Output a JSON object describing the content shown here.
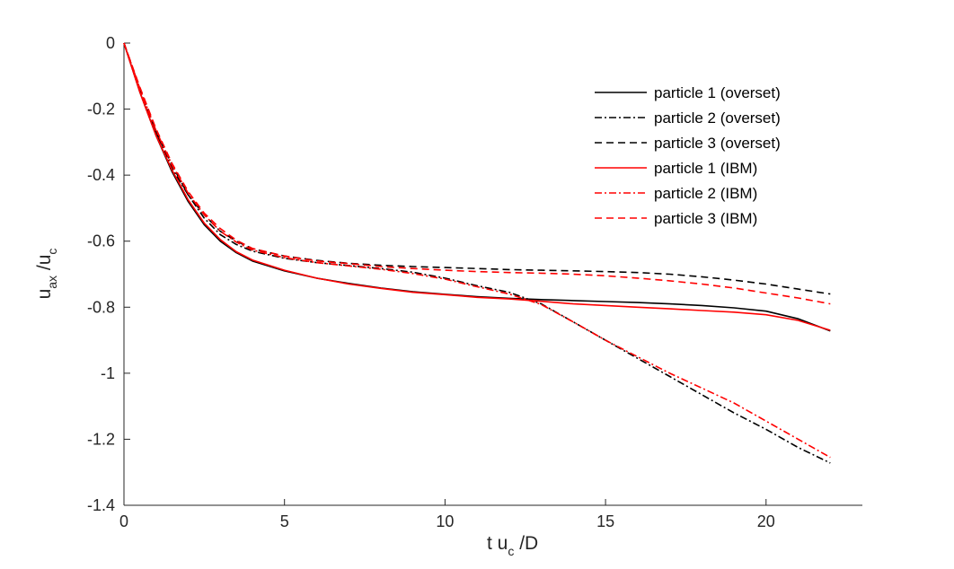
{
  "chart_data": {
    "type": "line",
    "title": "",
    "xlabel": "t u_c /D",
    "ylabel": "u_ax /u_c",
    "xlim": [
      0,
      23
    ],
    "ylim": [
      -1.4,
      0
    ],
    "xticks": [
      0,
      5,
      10,
      15,
      20
    ],
    "yticks": [
      0,
      -0.2,
      -0.4,
      -0.6,
      -0.8,
      -1,
      -1.2,
      -1.4
    ],
    "xtick_labels": [
      "0",
      "5",
      "10",
      "15",
      "20"
    ],
    "ytick_labels": [
      "0",
      "-0.2",
      "-0.4",
      "-0.6",
      "-0.8",
      "-1",
      "-1.2",
      "-1.4"
    ],
    "grid": false,
    "legend_position": "top-right",
    "series": [
      {
        "name": "particle 1 (overset)",
        "color": "#000000",
        "dash": "solid",
        "x": [
          0,
          0.5,
          1,
          1.5,
          2,
          2.5,
          3,
          3.5,
          4,
          5,
          6,
          7,
          8,
          9,
          10,
          11,
          12,
          13,
          14,
          15,
          16,
          17,
          18,
          19,
          20,
          21,
          22
        ],
        "y": [
          0,
          -0.15,
          -0.28,
          -0.39,
          -0.48,
          -0.55,
          -0.6,
          -0.635,
          -0.66,
          -0.69,
          -0.712,
          -0.728,
          -0.742,
          -0.753,
          -0.761,
          -0.768,
          -0.773,
          -0.777,
          -0.78,
          -0.783,
          -0.786,
          -0.79,
          -0.795,
          -0.802,
          -0.812,
          -0.835,
          -0.872
        ]
      },
      {
        "name": "particle 2 (overset)",
        "color": "#000000",
        "dash": "dashdot",
        "x": [
          0,
          0.5,
          1,
          1.5,
          2,
          2.5,
          3,
          3.5,
          4,
          5,
          6,
          7,
          8,
          9,
          10,
          11,
          12,
          13,
          14,
          15,
          16,
          17,
          18,
          19,
          20,
          21,
          22
        ],
        "y": [
          0,
          -0.14,
          -0.27,
          -0.38,
          -0.46,
          -0.53,
          -0.58,
          -0.61,
          -0.63,
          -0.652,
          -0.665,
          -0.674,
          -0.683,
          -0.694,
          -0.712,
          -0.735,
          -0.755,
          -0.79,
          -0.845,
          -0.9,
          -0.955,
          -1.01,
          -1.065,
          -1.12,
          -1.17,
          -1.225,
          -1.272
        ]
      },
      {
        "name": "particle 3 (overset)",
        "color": "#000000",
        "dash": "dashed",
        "x": [
          0,
          0.5,
          1,
          1.5,
          2,
          2.5,
          3,
          3.5,
          4,
          5,
          6,
          7,
          8,
          9,
          10,
          11,
          12,
          13,
          14,
          15,
          16,
          17,
          18,
          19,
          20,
          21,
          22
        ],
        "y": [
          0,
          -0.14,
          -0.27,
          -0.37,
          -0.46,
          -0.52,
          -0.57,
          -0.6,
          -0.623,
          -0.645,
          -0.658,
          -0.667,
          -0.673,
          -0.677,
          -0.68,
          -0.683,
          -0.686,
          -0.688,
          -0.69,
          -0.692,
          -0.695,
          -0.7,
          -0.708,
          -0.718,
          -0.73,
          -0.745,
          -0.76
        ]
      },
      {
        "name": "particle 1 (IBM)",
        "color": "#ff0000",
        "dash": "solid",
        "x": [
          0,
          0.5,
          1,
          1.5,
          2,
          2.5,
          3,
          3.5,
          4,
          5,
          6,
          7,
          8,
          9,
          10,
          11,
          12,
          13,
          14,
          15,
          16,
          17,
          18,
          19,
          20,
          21,
          22
        ],
        "y": [
          0,
          -0.15,
          -0.28,
          -0.385,
          -0.475,
          -0.545,
          -0.595,
          -0.632,
          -0.657,
          -0.688,
          -0.712,
          -0.73,
          -0.743,
          -0.755,
          -0.762,
          -0.77,
          -0.775,
          -0.782,
          -0.79,
          -0.795,
          -0.8,
          -0.805,
          -0.81,
          -0.815,
          -0.823,
          -0.84,
          -0.87
        ]
      },
      {
        "name": "particle 2 (IBM)",
        "color": "#ff0000",
        "dash": "dashdot",
        "x": [
          0,
          0.5,
          1,
          1.5,
          2,
          2.5,
          3,
          3.5,
          4,
          5,
          6,
          7,
          8,
          9,
          10,
          11,
          12,
          13,
          14,
          15,
          16,
          17,
          18,
          19,
          20,
          21,
          22
        ],
        "y": [
          0,
          -0.14,
          -0.265,
          -0.37,
          -0.455,
          -0.52,
          -0.57,
          -0.603,
          -0.627,
          -0.65,
          -0.665,
          -0.675,
          -0.685,
          -0.698,
          -0.715,
          -0.738,
          -0.76,
          -0.792,
          -0.845,
          -0.9,
          -0.95,
          -1.0,
          -1.045,
          -1.09,
          -1.145,
          -1.2,
          -1.255
        ]
      },
      {
        "name": "particle 3 (IBM)",
        "color": "#ff0000",
        "dash": "dashed",
        "x": [
          0,
          0.5,
          1,
          1.5,
          2,
          2.5,
          3,
          3.5,
          4,
          5,
          6,
          7,
          8,
          9,
          10,
          11,
          12,
          13,
          14,
          15,
          16,
          17,
          18,
          19,
          20,
          21,
          22
        ],
        "y": [
          0,
          -0.135,
          -0.26,
          -0.365,
          -0.45,
          -0.515,
          -0.562,
          -0.597,
          -0.622,
          -0.645,
          -0.66,
          -0.668,
          -0.677,
          -0.683,
          -0.688,
          -0.692,
          -0.695,
          -0.697,
          -0.7,
          -0.705,
          -0.712,
          -0.72,
          -0.73,
          -0.742,
          -0.757,
          -0.772,
          -0.79
        ]
      }
    ]
  }
}
